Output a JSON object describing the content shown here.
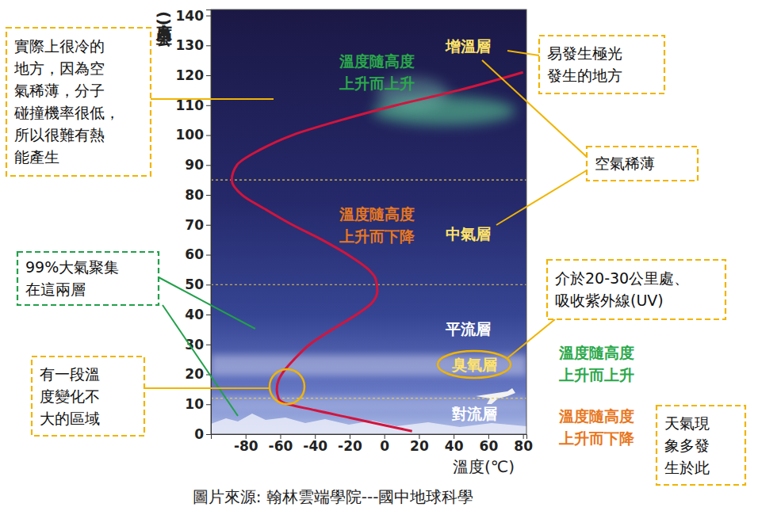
{
  "chart_data": {
    "type": "line",
    "x_label": "溫度(℃)",
    "y_label": "高度(公里)",
    "source": "圖片來源: 翰林雲端學院---國中地球科學",
    "color": "#d3143c",
    "grid": false,
    "xlim": [
      -100,
      82
    ],
    "xticks": [
      -80,
      -60,
      -40,
      -20,
      0,
      20,
      40,
      60,
      80
    ],
    "ylim": [
      0,
      142
    ],
    "yticks": [
      0,
      10,
      20,
      30,
      40,
      50,
      60,
      70,
      80,
      90,
      100,
      110,
      120,
      130,
      140
    ],
    "x": [
      16,
      0,
      -20,
      -40,
      -58,
      -61,
      -62,
      -61,
      -58,
      -52,
      -43,
      -30,
      -16,
      -7,
      -4,
      -5,
      -9,
      -21,
      -36,
      -53,
      -68,
      -82,
      -88,
      -85,
      -72,
      -53,
      -25,
      7,
      43,
      80
    ],
    "values": [
      1,
      3,
      5.5,
      8,
      10.5,
      12,
      15,
      18,
      21,
      25,
      30,
      35,
      40,
      44,
      48,
      52,
      55,
      60,
      65,
      70,
      75,
      80,
      85,
      90,
      95,
      100,
      105,
      110,
      115,
      121
    ],
    "boundaries": [
      12,
      50,
      85
    ],
    "layers": [
      "增溫層",
      "中氣層",
      "平流層",
      "臭氧層",
      "對流層"
    ],
    "trend_labels": [
      {
        "lines": [
          "溫度隨高度",
          "上升而上升"
        ],
        "color": "#2aa84a"
      },
      {
        "lines": [
          "溫度隨高度",
          "上升而下降"
        ],
        "color": "#e8771e"
      },
      {
        "lines": [
          "溫度隨高度",
          "上升而上升"
        ],
        "color": "#2aa84a"
      },
      {
        "lines": [
          "溫度隨高度",
          "上升而下降"
        ],
        "color": "#e8771e"
      }
    ],
    "annotations": [
      {
        "lines": [
          "實際上很冷的",
          "地方，因為空",
          "氣稀薄，分子",
          "碰撞機率很低，",
          "所以很難有熱",
          "能產生"
        ],
        "color": "#f0b400"
      },
      {
        "lines": [
          "99%大氣聚集",
          "在這兩層"
        ],
        "color": "#22a04a"
      },
      {
        "lines": [
          "有一段溫",
          "度變化不",
          "大的區域"
        ],
        "color": "#f0b400"
      },
      {
        "lines": [
          "易發生極光",
          "發生的地方"
        ],
        "color": "#f0b400"
      },
      {
        "lines": [
          "空氣稀薄"
        ],
        "color": "#f0b400"
      },
      {
        "lines": [
          "介於20-30公里處、",
          "吸收紫外線(UV)"
        ],
        "color": "#f0b400"
      },
      {
        "lines": [
          "天氣現",
          "象多發",
          "生於此"
        ],
        "color": "#f0b400"
      }
    ]
  }
}
